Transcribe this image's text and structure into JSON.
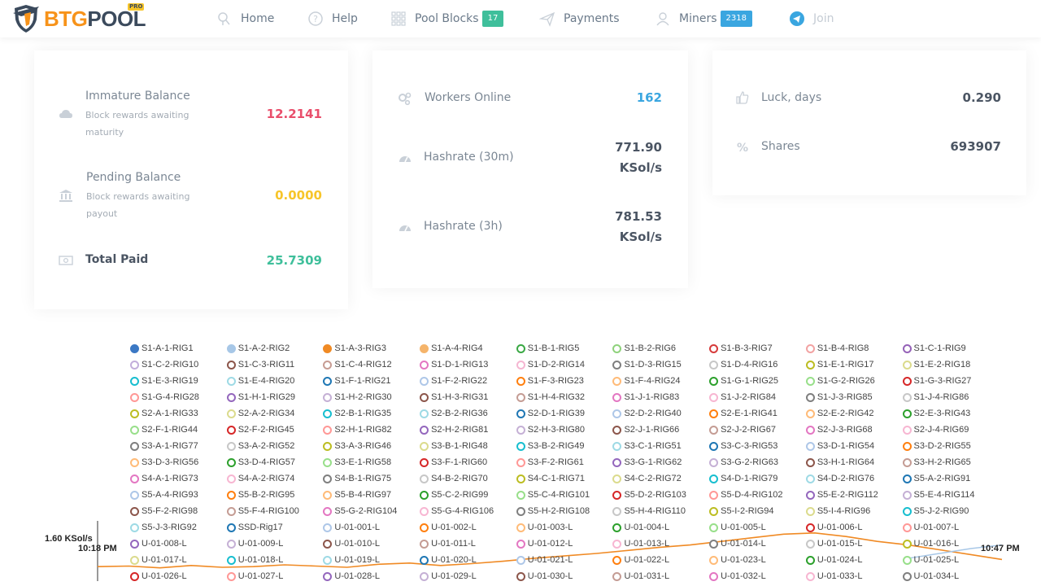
{
  "brand": {
    "part1": "BTG",
    "part2": "POOL",
    "badge": "PRO"
  },
  "nav": {
    "home": "Home",
    "help": "Help",
    "pool_blocks": "Pool Blocks",
    "pool_blocks_count": "17",
    "payments": "Payments",
    "miners": "Miners",
    "miners_count": "2318",
    "join": "Join"
  },
  "balances": {
    "immature_title": "Immature Balance",
    "immature_sub": "Block rewards awaiting maturity",
    "immature_value": "12.2141",
    "pending_title": "Pending Balance",
    "pending_sub": "Block rewards awaiting payout",
    "pending_value": "0.0000",
    "total_title": "Total Paid",
    "total_value": "25.7309"
  },
  "workers": {
    "online_label": "Workers Online",
    "online_value": "162",
    "hash30_label": "Hashrate (30m)",
    "hash30_value": "771.90",
    "hash30_unit": "KSol/s",
    "hash3h_label": "Hashrate (3h)",
    "hash3h_value": "781.53",
    "hash3h_unit": "KSol/s"
  },
  "luck": {
    "luck_label": "Luck, days",
    "luck_value": "0.290",
    "shares_label": "Shares",
    "shares_value": "693907"
  },
  "colors": {
    "immature": "#e94e6b",
    "pending": "#f7c52a",
    "total": "#3fbf9b",
    "workers": "#3aa6e0",
    "badge_green": "#3fbf9b",
    "badge_blue": "#3aa6e0",
    "chart_line_main": "#f08a24",
    "chart_line_alt": "#a7c7e7"
  },
  "chart_data": {
    "type": "line",
    "ylabel_top": "1.60 KSol/s",
    "x_start": "10:18 PM",
    "x_end": "10:47 PM",
    "series": [
      {
        "name": "S1-A-1-RIG1",
        "color": "#3b78c4",
        "filled": true
      },
      {
        "name": "S1-A-2-RIG2",
        "color": "#a7c7e7",
        "filled": true
      },
      {
        "name": "S1-A-3-RIG3",
        "color": "#f08a24",
        "filled": true
      },
      {
        "name": "S1-A-4-RIG4",
        "color": "#f5b46b",
        "filled": true
      },
      {
        "name": "S1-B-1-RIG5",
        "color": "#3aa844"
      },
      {
        "name": "S1-B-2-RIG6",
        "color": "#8fd27c"
      },
      {
        "name": "S1-B-3-RIG7",
        "color": "#d63a3a"
      },
      {
        "name": "S1-B-4-RIG8",
        "color": "#f2a2a2"
      },
      {
        "name": "S1-C-1-RIG9",
        "color": "#9562b8"
      },
      {
        "name": "S1-C-2-RIG10",
        "color": "#c2aedb"
      },
      {
        "name": "S1-C-3-RIG11",
        "color": "#8c564b"
      },
      {
        "name": "S1-C-4-RIG12",
        "color": "#c79c93"
      },
      {
        "name": "S1-D-1-RIG13",
        "color": "#e377c2"
      },
      {
        "name": "S1-D-2-RIG14",
        "color": "#f5b6d2"
      },
      {
        "name": "S1-D-3-RIG15",
        "color": "#7f7f7f"
      },
      {
        "name": "S1-D-4-RIG16",
        "color": "#c7c7c7"
      },
      {
        "name": "S1-E-1-RIG17",
        "color": "#bcbd22"
      },
      {
        "name": "S1-E-2-RIG18",
        "color": "#dbdb8d"
      },
      {
        "name": "S1-E-3-RIG19",
        "color": "#17becf"
      },
      {
        "name": "S1-E-4-RIG20",
        "color": "#9edae5"
      },
      {
        "name": "S1-F-1-RIG21",
        "color": "#1f77b4"
      },
      {
        "name": "S1-F-2-RIG22",
        "color": "#aec7e8"
      },
      {
        "name": "S1-F-3-RIG23",
        "color": "#ff7f0e"
      },
      {
        "name": "S1-F-4-RIG24",
        "color": "#ffbb78"
      },
      {
        "name": "S1-G-1-RIG25",
        "color": "#2ca02c"
      },
      {
        "name": "S1-G-2-RIG26",
        "color": "#98df8a"
      },
      {
        "name": "S1-G-3-RIG27",
        "color": "#d62728"
      },
      {
        "name": "S1-G-4-RIG28",
        "color": "#ff9896"
      },
      {
        "name": "S1-H-1-RIG29",
        "color": "#9467bd"
      },
      {
        "name": "S1-H-2-RIG30",
        "color": "#c5b0d5"
      },
      {
        "name": "S1-H-3-RIG31",
        "color": "#8c564b"
      },
      {
        "name": "S1-H-4-RIG32",
        "color": "#c49c94"
      },
      {
        "name": "S1-J-1-RIG83",
        "color": "#e377c2"
      },
      {
        "name": "S1-J-2-RIG84",
        "color": "#f7b6d2"
      },
      {
        "name": "S1-J-3-RIG85",
        "color": "#7f7f7f"
      },
      {
        "name": "S1-J-4-RIG86",
        "color": "#c7c7c7"
      },
      {
        "name": "S2-A-1-RIG33",
        "color": "#bcbd22"
      },
      {
        "name": "S2-A-2-RIG34",
        "color": "#dbdb8d"
      },
      {
        "name": "S2-B-1-RIG35",
        "color": "#17becf"
      },
      {
        "name": "S2-B-2-RIG36",
        "color": "#9edae5"
      },
      {
        "name": "S2-D-1-RIG39",
        "color": "#1f77b4"
      },
      {
        "name": "S2-D-2-RIG40",
        "color": "#aec7e8"
      },
      {
        "name": "S2-E-1-RIG41",
        "color": "#ff7f0e"
      },
      {
        "name": "S2-E-2-RIG42",
        "color": "#ffbb78"
      },
      {
        "name": "S2-E-3-RIG43",
        "color": "#2ca02c"
      },
      {
        "name": "S2-F-1-RIG44",
        "color": "#98df8a"
      },
      {
        "name": "S2-F-2-RIG45",
        "color": "#d62728"
      },
      {
        "name": "S2-H-1-RIG82",
        "color": "#ff9896"
      },
      {
        "name": "S2-H-2-RIG81",
        "color": "#9467bd"
      },
      {
        "name": "S2-H-3-RIG80",
        "color": "#c5b0d5"
      },
      {
        "name": "S2-J-1-RIG66",
        "color": "#8c564b"
      },
      {
        "name": "S2-J-2-RIG67",
        "color": "#c49c94"
      },
      {
        "name": "S2-J-3-RIG68",
        "color": "#e377c2"
      },
      {
        "name": "S2-J-4-RIG69",
        "color": "#f7b6d2"
      },
      {
        "name": "S3-A-1-RIG77",
        "color": "#7f7f7f"
      },
      {
        "name": "S3-A-2-RIG52",
        "color": "#c7c7c7"
      },
      {
        "name": "S3-A-3-RIG46",
        "color": "#bcbd22"
      },
      {
        "name": "S3-B-1-RIG48",
        "color": "#dbdb8d"
      },
      {
        "name": "S3-B-2-RIG49",
        "color": "#17becf"
      },
      {
        "name": "S3-C-1-RIG51",
        "color": "#9edae5"
      },
      {
        "name": "S3-C-3-RIG53",
        "color": "#1f77b4"
      },
      {
        "name": "S3-D-1-RIG54",
        "color": "#aec7e8"
      },
      {
        "name": "S3-D-2-RIG55",
        "color": "#ff7f0e"
      },
      {
        "name": "S3-D-3-RIG56",
        "color": "#ffbb78"
      },
      {
        "name": "S3-D-4-RIG57",
        "color": "#2ca02c"
      },
      {
        "name": "S3-E-1-RIG58",
        "color": "#98df8a"
      },
      {
        "name": "S3-F-1-RIG60",
        "color": "#d62728"
      },
      {
        "name": "S3-F-2-RIG61",
        "color": "#ff9896"
      },
      {
        "name": "S3-G-1-RIG62",
        "color": "#9467bd"
      },
      {
        "name": "S3-G-2-RIG63",
        "color": "#c5b0d5"
      },
      {
        "name": "S3-H-1-RIG64",
        "color": "#8c564b"
      },
      {
        "name": "S3-H-2-RIG65",
        "color": "#c49c94"
      },
      {
        "name": "S4-A-1-RIG73",
        "color": "#e377c2"
      },
      {
        "name": "S4-A-2-RIG74",
        "color": "#f7b6d2"
      },
      {
        "name": "S4-B-1-RIG75",
        "color": "#7f7f7f"
      },
      {
        "name": "S4-B-2-RIG70",
        "color": "#c7c7c7"
      },
      {
        "name": "S4-C-1-RIG71",
        "color": "#bcbd22"
      },
      {
        "name": "S4-C-2-RIG72",
        "color": "#dbdb8d"
      },
      {
        "name": "S4-D-1-RIG79",
        "color": "#17becf"
      },
      {
        "name": "S4-D-2-RIG76",
        "color": "#9edae5"
      },
      {
        "name": "S5-A-2-RIG91",
        "color": "#1f77b4"
      },
      {
        "name": "S5-A-4-RIG93",
        "color": "#aec7e8"
      },
      {
        "name": "S5-B-2-RIG95",
        "color": "#ff7f0e"
      },
      {
        "name": "S5-B-4-RIG97",
        "color": "#ffbb78"
      },
      {
        "name": "S5-C-2-RIG99",
        "color": "#2ca02c"
      },
      {
        "name": "S5-C-4-RIG101",
        "color": "#98df8a"
      },
      {
        "name": "S5-D-2-RIG103",
        "color": "#d62728"
      },
      {
        "name": "S5-D-4-RIG102",
        "color": "#ff9896"
      },
      {
        "name": "S5-E-2-RIG112",
        "color": "#9467bd"
      },
      {
        "name": "S5-E-4-RIG114",
        "color": "#c5b0d5"
      },
      {
        "name": "S5-F-2-RIG98",
        "color": "#8c564b"
      },
      {
        "name": "S5-F-4-RIG100",
        "color": "#c49c94"
      },
      {
        "name": "S5-G-2-RIG104",
        "color": "#e377c2"
      },
      {
        "name": "S5-G-4-RIG106",
        "color": "#f7b6d2"
      },
      {
        "name": "S5-H-2-RIG108",
        "color": "#7f7f7f"
      },
      {
        "name": "S5-H-4-RIG110",
        "color": "#c7c7c7"
      },
      {
        "name": "S5-I-2-RIG94",
        "color": "#bcbd22"
      },
      {
        "name": "S5-I-4-RIG96",
        "color": "#dbdb8d"
      },
      {
        "name": "S5-J-2-RIG90",
        "color": "#17becf"
      },
      {
        "name": "S5-J-3-RIG92",
        "color": "#9edae5"
      },
      {
        "name": "SSD-Rig17",
        "color": "#1f77b4"
      },
      {
        "name": "U-01-001-L",
        "color": "#aec7e8"
      },
      {
        "name": "U-01-002-L",
        "color": "#ff7f0e"
      },
      {
        "name": "U-01-003-L",
        "color": "#ffbb78"
      },
      {
        "name": "U-01-004-L",
        "color": "#2ca02c"
      },
      {
        "name": "U-01-005-L",
        "color": "#98df8a"
      },
      {
        "name": "U-01-006-L",
        "color": "#d62728"
      },
      {
        "name": "U-01-007-L",
        "color": "#ff9896"
      },
      {
        "name": "U-01-008-L",
        "color": "#9467bd"
      },
      {
        "name": "U-01-009-L",
        "color": "#c5b0d5"
      },
      {
        "name": "U-01-010-L",
        "color": "#8c564b"
      },
      {
        "name": "U-01-011-L",
        "color": "#c49c94"
      },
      {
        "name": "U-01-012-L",
        "color": "#e377c2"
      },
      {
        "name": "U-01-013-L",
        "color": "#f7b6d2"
      },
      {
        "name": "U-01-014-L",
        "color": "#7f7f7f"
      },
      {
        "name": "U-01-015-L",
        "color": "#c7c7c7"
      },
      {
        "name": "U-01-016-L",
        "color": "#bcbd22"
      },
      {
        "name": "U-01-017-L",
        "color": "#dbdb8d"
      },
      {
        "name": "U-01-018-L",
        "color": "#17becf"
      },
      {
        "name": "U-01-019-L",
        "color": "#9edae5"
      },
      {
        "name": "U-01-020-L",
        "color": "#1f77b4"
      },
      {
        "name": "U-01-021-L",
        "color": "#aec7e8"
      },
      {
        "name": "U-01-022-L",
        "color": "#ff7f0e"
      },
      {
        "name": "U-01-023-L",
        "color": "#ffbb78"
      },
      {
        "name": "U-01-024-L",
        "color": "#2ca02c"
      },
      {
        "name": "U-01-025-L",
        "color": "#98df8a"
      },
      {
        "name": "U-01-026-L",
        "color": "#d62728"
      },
      {
        "name": "U-01-027-L",
        "color": "#ff9896"
      },
      {
        "name": "U-01-028-L",
        "color": "#9467bd"
      },
      {
        "name": "U-01-029-L",
        "color": "#c5b0d5"
      },
      {
        "name": "U-01-030-L",
        "color": "#8c564b"
      },
      {
        "name": "U-01-031-L",
        "color": "#c49c94"
      },
      {
        "name": "U-01-032-L",
        "color": "#e377c2"
      },
      {
        "name": "U-01-033-L",
        "color": "#f7b6d2"
      },
      {
        "name": "U-01-034-L",
        "color": "#7f7f7f"
      }
    ],
    "line_main": [
      0.24,
      0.25,
      0.22,
      0.26,
      0.23,
      0.24,
      0.27,
      0.25,
      0.23,
      0.28,
      0.3,
      0.26,
      0.29,
      0.33,
      0.38,
      0.42,
      0.46,
      0.51,
      0.56,
      0.6,
      0.66,
      0.72,
      0.78,
      0.8,
      0.74,
      0.66,
      0.6,
      0.52,
      0.44,
      0.36
    ],
    "line_alt": [
      0.38,
      0.46,
      0.54,
      0.6
    ]
  }
}
